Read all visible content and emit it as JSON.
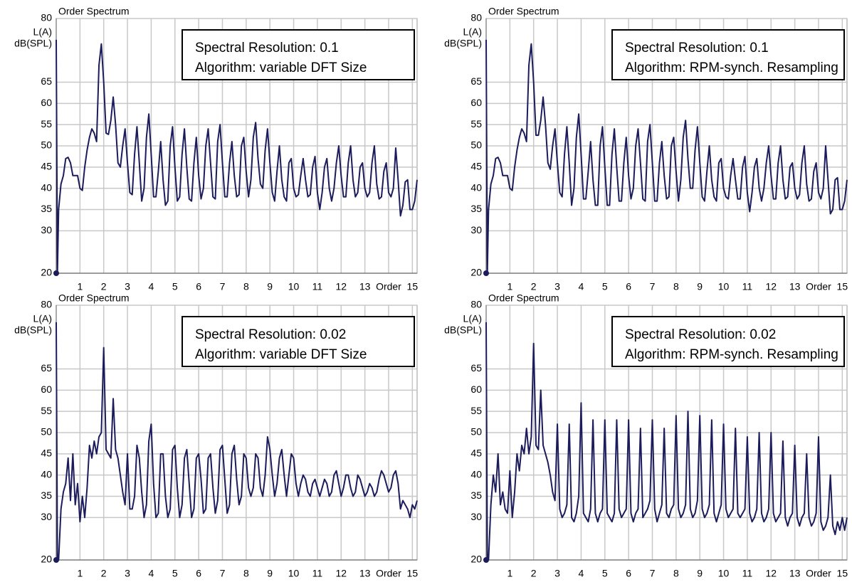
{
  "chart_data": [
    {
      "type": "line",
      "title": "Order Spectrum",
      "y_label": [
        "L(A)",
        "dB(SPL)"
      ],
      "annotation": [
        "Spectral Resolution: 0.1",
        "Algorithm: variable DFT Size"
      ],
      "color": "#1c1c5c",
      "grid": true,
      "xlim": [
        0,
        15.2
      ],
      "ylim": [
        20,
        80
      ],
      "xticks": [
        1,
        2,
        3,
        4,
        5,
        6,
        7,
        8,
        9,
        10,
        11,
        12,
        13,
        {
          "value": 14,
          "label": "Order"
        },
        15
      ],
      "yticks": [
        20,
        30,
        35,
        40,
        45,
        50,
        55,
        60,
        65,
        80
      ],
      "x": [
        0,
        0.05,
        0.1,
        0.2,
        0.3,
        0.4,
        0.5,
        0.6,
        0.7,
        0.8,
        0.9,
        1,
        1.1,
        1.2,
        1.3,
        1.4,
        1.5,
        1.6,
        1.7,
        1.8,
        1.9,
        2,
        2.1,
        2.2,
        2.3,
        2.4,
        2.5,
        2.6,
        2.7,
        2.8,
        2.9,
        3,
        3.1,
        3.2,
        3.3,
        3.4,
        3.5,
        3.6,
        3.7,
        3.8,
        3.9,
        4,
        4.1,
        4.2,
        4.3,
        4.4,
        4.5,
        4.6,
        4.7,
        4.8,
        4.9,
        5,
        5.1,
        5.2,
        5.3,
        5.4,
        5.5,
        5.6,
        5.7,
        5.8,
        5.9,
        6,
        6.1,
        6.2,
        6.3,
        6.4,
        6.5,
        6.6,
        6.7,
        6.8,
        6.9,
        7,
        7.1,
        7.2,
        7.3,
        7.4,
        7.5,
        7.6,
        7.7,
        7.8,
        7.9,
        8,
        8.1,
        8.2,
        8.3,
        8.4,
        8.5,
        8.6,
        8.7,
        8.8,
        8.9,
        9,
        9.1,
        9.2,
        9.3,
        9.4,
        9.5,
        9.6,
        9.7,
        9.8,
        9.9,
        10,
        10.1,
        10.2,
        10.3,
        10.4,
        10.5,
        10.6,
        10.7,
        10.8,
        10.9,
        11,
        11.1,
        11.2,
        11.3,
        11.4,
        11.5,
        11.6,
        11.7,
        11.8,
        11.9,
        12,
        12.1,
        12.2,
        12.3,
        12.4,
        12.5,
        12.6,
        12.7,
        12.8,
        12.9,
        13,
        13.1,
        13.2,
        13.3,
        13.4,
        13.5,
        13.6,
        13.7,
        13.8,
        13.9,
        14,
        14.1,
        14.2,
        14.3,
        14.4,
        14.5,
        14.6,
        14.7,
        14.8,
        14.9,
        15,
        15.1,
        15.2
      ],
      "values": [
        75,
        20,
        35,
        41,
        43,
        47,
        47.3,
        46,
        43,
        43,
        43,
        40,
        39.5,
        45,
        49,
        52,
        54,
        53,
        51,
        69,
        74,
        65,
        53,
        52.7,
        56,
        61.5,
        55,
        46,
        45,
        50,
        54,
        46,
        39,
        38.5,
        48,
        54.5,
        46,
        37,
        40,
        52,
        57.5,
        48,
        38,
        38,
        44,
        51,
        42,
        36,
        37,
        50,
        54.5,
        45,
        37,
        38,
        48,
        54,
        45,
        37.5,
        37,
        46,
        52,
        43,
        37.5,
        40,
        50,
        54,
        46,
        38,
        37.5,
        51,
        55,
        46,
        38,
        38,
        46,
        51,
        43,
        38,
        38.5,
        50,
        52,
        44,
        38,
        42,
        52,
        55.5,
        47,
        41,
        40,
        49,
        54,
        46,
        39,
        37,
        44,
        50,
        42,
        38,
        37,
        46,
        47,
        40,
        38,
        38.5,
        43,
        47,
        42,
        38,
        38.5,
        45,
        47.5,
        39,
        35,
        39,
        45,
        47,
        40,
        37,
        40,
        46,
        50,
        43,
        38,
        38,
        46,
        50,
        42,
        38,
        39,
        45,
        46,
        40,
        38,
        39,
        46,
        50,
        41,
        37.5,
        38,
        44,
        46,
        39,
        38,
        40,
        49.5,
        42,
        33.5,
        36,
        41.5,
        42,
        35,
        35,
        37,
        42
      ]
    },
    {
      "type": "line",
      "title": "Order Spectrum",
      "y_label": [
        "L(A)",
        "dB(SPL)"
      ],
      "annotation": [
        "Spectral Resolution: 0.1",
        "Algorithm: RPM-synch. Resampling"
      ],
      "color": "#1c1c5c",
      "grid": true,
      "xlim": [
        0,
        15.2
      ],
      "ylim": [
        20,
        80
      ],
      "xticks": [
        1,
        2,
        3,
        4,
        5,
        6,
        7,
        8,
        9,
        10,
        11,
        12,
        13,
        {
          "value": 14,
          "label": "Order"
        },
        15
      ],
      "yticks": [
        20,
        30,
        35,
        40,
        45,
        50,
        55,
        60,
        65,
        80
      ],
      "x": [
        0,
        0.05,
        0.1,
        0.2,
        0.3,
        0.4,
        0.5,
        0.6,
        0.7,
        0.8,
        0.9,
        1,
        1.1,
        1.2,
        1.3,
        1.4,
        1.5,
        1.6,
        1.7,
        1.8,
        1.9,
        2,
        2.1,
        2.2,
        2.3,
        2.4,
        2.5,
        2.6,
        2.7,
        2.8,
        2.9,
        3,
        3.1,
        3.2,
        3.3,
        3.4,
        3.5,
        3.6,
        3.7,
        3.8,
        3.9,
        4,
        4.1,
        4.2,
        4.3,
        4.4,
        4.5,
        4.6,
        4.7,
        4.8,
        4.9,
        5,
        5.1,
        5.2,
        5.3,
        5.4,
        5.5,
        5.6,
        5.7,
        5.8,
        5.9,
        6,
        6.1,
        6.2,
        6.3,
        6.4,
        6.5,
        6.6,
        6.7,
        6.8,
        6.9,
        7,
        7.1,
        7.2,
        7.3,
        7.4,
        7.5,
        7.6,
        7.7,
        7.8,
        7.9,
        8,
        8.1,
        8.2,
        8.3,
        8.4,
        8.5,
        8.6,
        8.7,
        8.8,
        8.9,
        9,
        9.1,
        9.2,
        9.3,
        9.4,
        9.5,
        9.6,
        9.7,
        9.8,
        9.9,
        10,
        10.1,
        10.2,
        10.3,
        10.4,
        10.5,
        10.6,
        10.7,
        10.8,
        10.9,
        11,
        11.1,
        11.2,
        11.3,
        11.4,
        11.5,
        11.6,
        11.7,
        11.8,
        11.9,
        12,
        12.1,
        12.2,
        12.3,
        12.4,
        12.5,
        12.6,
        12.7,
        12.8,
        12.9,
        13,
        13.1,
        13.2,
        13.3,
        13.4,
        13.5,
        13.6,
        13.7,
        13.8,
        13.9,
        14,
        14.1,
        14.2,
        14.3,
        14.4,
        14.5,
        14.6,
        14.7,
        14.8,
        14.9,
        15,
        15.1,
        15.2
      ],
      "values": [
        75,
        20,
        35,
        41,
        43,
        47,
        47.3,
        46,
        43,
        43,
        43,
        40,
        39.5,
        45,
        49,
        52,
        54,
        53,
        51,
        69,
        74,
        65,
        52.5,
        52.5,
        56,
        61.5,
        55,
        46,
        44.5,
        50,
        54,
        46,
        39,
        38,
        48,
        54.5,
        46,
        36,
        40,
        52,
        57.5,
        48,
        37.5,
        37.5,
        44,
        51,
        42,
        36,
        36,
        50,
        54.5,
        45,
        36,
        36,
        48,
        54,
        45,
        37,
        37,
        46,
        52,
        43,
        37.5,
        40,
        50,
        54,
        46,
        37.5,
        37,
        51,
        55,
        46,
        37,
        37,
        46,
        51,
        43,
        37.5,
        38,
        50,
        52,
        44,
        37,
        42,
        52,
        56,
        47,
        40,
        40,
        49,
        54.5,
        46,
        38,
        37,
        44,
        50,
        42,
        38,
        37,
        46,
        47,
        40,
        38,
        37.5,
        43,
        47,
        42,
        37.5,
        37.5,
        45,
        47.5,
        39,
        34.5,
        39,
        45,
        47,
        40,
        37,
        40,
        46,
        50,
        43,
        37.5,
        37.5,
        46,
        50,
        42,
        37.5,
        38,
        45,
        46,
        40,
        37.5,
        38.5,
        46,
        50,
        41,
        37,
        37.5,
        44,
        46,
        39,
        37.5,
        40,
        50,
        42,
        34,
        35,
        42,
        42.5,
        35,
        35,
        37,
        42
      ]
    },
    {
      "type": "line",
      "title": "Order Spectrum",
      "y_label": [
        "L(A)",
        "dB(SPL)"
      ],
      "annotation": [
        "Spectral Resolution: 0.02",
        "Algorithm: variable DFT Size"
      ],
      "color": "#1c1c5c",
      "grid": true,
      "xlim": [
        0,
        15.2
      ],
      "ylim": [
        20,
        80
      ],
      "xticks": [
        1,
        2,
        3,
        4,
        5,
        6,
        7,
        8,
        9,
        10,
        11,
        12,
        13,
        {
          "value": 14,
          "label": "Order"
        },
        15
      ],
      "yticks": [
        20,
        30,
        35,
        40,
        45,
        50,
        55,
        60,
        65,
        80
      ],
      "x": [
        0,
        0.05,
        0.1,
        0.2,
        0.3,
        0.4,
        0.5,
        0.6,
        0.7,
        0.8,
        0.9,
        1,
        1.1,
        1.2,
        1.3,
        1.4,
        1.5,
        1.6,
        1.7,
        1.8,
        1.9,
        2,
        2.1,
        2.2,
        2.3,
        2.4,
        2.5,
        2.6,
        2.7,
        2.8,
        2.9,
        3,
        3.1,
        3.2,
        3.3,
        3.4,
        3.5,
        3.6,
        3.7,
        3.8,
        3.9,
        4,
        4.1,
        4.2,
        4.3,
        4.4,
        4.5,
        4.6,
        4.7,
        4.8,
        4.9,
        5,
        5.1,
        5.2,
        5.3,
        5.4,
        5.5,
        5.6,
        5.7,
        5.8,
        5.9,
        6,
        6.1,
        6.2,
        6.3,
        6.4,
        6.5,
        6.6,
        6.7,
        6.8,
        6.9,
        7,
        7.1,
        7.2,
        7.3,
        7.4,
        7.5,
        7.6,
        7.7,
        7.8,
        7.9,
        8,
        8.1,
        8.2,
        8.3,
        8.4,
        8.5,
        8.6,
        8.7,
        8.8,
        8.9,
        9,
        9.1,
        9.2,
        9.3,
        9.4,
        9.5,
        9.6,
        9.7,
        9.8,
        9.9,
        10,
        10.1,
        10.2,
        10.3,
        10.4,
        10.5,
        10.6,
        10.7,
        10.8,
        10.9,
        11,
        11.1,
        11.2,
        11.3,
        11.4,
        11.5,
        11.6,
        11.7,
        11.8,
        11.9,
        12,
        12.1,
        12.2,
        12.3,
        12.4,
        12.5,
        12.6,
        12.7,
        12.8,
        12.9,
        13,
        13.1,
        13.2,
        13.3,
        13.4,
        13.5,
        13.6,
        13.7,
        13.8,
        13.9,
        14,
        14.1,
        14.2,
        14.3,
        14.4,
        14.5,
        14.6,
        14.7,
        14.8,
        14.9,
        15,
        15.1,
        15.2
      ],
      "values": [
        76,
        20,
        20,
        32,
        36,
        38,
        44,
        34,
        45,
        33,
        38,
        29,
        35,
        30,
        37,
        47,
        44,
        48,
        45,
        49,
        50,
        70,
        46,
        45,
        44,
        58,
        46,
        44,
        40,
        36,
        33,
        45,
        32,
        32,
        35,
        47,
        44,
        36,
        30,
        33,
        48,
        52,
        38,
        30,
        31,
        45,
        45,
        35,
        30,
        32,
        46,
        47,
        37,
        30,
        33,
        44,
        46,
        38,
        30,
        32,
        44,
        45,
        39,
        31,
        32,
        44,
        45,
        37,
        31,
        34,
        46,
        47,
        39,
        31,
        33,
        45,
        47,
        39,
        33,
        35,
        45,
        44,
        37,
        35,
        37,
        45,
        44,
        37,
        35,
        40,
        49,
        46,
        40,
        35,
        38,
        44,
        46,
        40,
        35,
        40,
        45,
        44,
        38,
        35,
        38,
        40,
        39,
        36,
        35,
        38,
        39,
        37,
        35,
        37,
        39,
        38,
        35,
        36,
        40,
        41,
        38,
        35,
        37,
        40,
        40,
        37,
        35,
        36,
        40,
        39,
        37,
        35,
        36,
        38,
        37,
        35,
        36,
        39,
        41,
        40,
        38,
        36,
        37,
        40,
        41,
        38,
        32,
        34,
        33,
        32,
        30,
        33,
        32,
        34
      ]
    },
    {
      "type": "line",
      "title": "Order Spectrum",
      "y_label": [
        "L(A)",
        "dB(SPL)"
      ],
      "annotation": [
        "Spectral Resolution: 0.02",
        "Algorithm: RPM-synch. Resampling"
      ],
      "color": "#1c1c5c",
      "grid": true,
      "xlim": [
        0,
        15.2
      ],
      "ylim": [
        20,
        80
      ],
      "xticks": [
        1,
        2,
        3,
        4,
        5,
        6,
        7,
        8,
        9,
        10,
        11,
        12,
        13,
        {
          "value": 14,
          "label": "Order"
        },
        15
      ],
      "yticks": [
        20,
        30,
        35,
        40,
        45,
        50,
        55,
        60,
        65,
        80
      ],
      "x": [
        0,
        0.05,
        0.1,
        0.2,
        0.3,
        0.4,
        0.5,
        0.6,
        0.7,
        0.8,
        0.9,
        1,
        1.1,
        1.2,
        1.3,
        1.4,
        1.5,
        1.6,
        1.7,
        1.8,
        1.9,
        2,
        2.1,
        2.2,
        2.3,
        2.4,
        2.5,
        2.6,
        2.7,
        2.8,
        2.9,
        3,
        3.1,
        3.2,
        3.3,
        3.4,
        3.5,
        3.6,
        3.7,
        3.8,
        3.9,
        4,
        4.1,
        4.2,
        4.3,
        4.4,
        4.5,
        4.6,
        4.7,
        4.8,
        4.9,
        5,
        5.1,
        5.2,
        5.3,
        5.4,
        5.5,
        5.6,
        5.7,
        5.8,
        5.9,
        6,
        6.1,
        6.2,
        6.3,
        6.4,
        6.5,
        6.6,
        6.7,
        6.8,
        6.9,
        7,
        7.1,
        7.2,
        7.3,
        7.4,
        7.5,
        7.6,
        7.7,
        7.8,
        7.9,
        8,
        8.1,
        8.2,
        8.3,
        8.4,
        8.5,
        8.6,
        8.7,
        8.8,
        8.9,
        9,
        9.1,
        9.2,
        9.3,
        9.4,
        9.5,
        9.6,
        9.7,
        9.8,
        9.9,
        10,
        10.1,
        10.2,
        10.3,
        10.4,
        10.5,
        10.6,
        10.7,
        10.8,
        10.9,
        11,
        11.1,
        11.2,
        11.3,
        11.4,
        11.5,
        11.6,
        11.7,
        11.8,
        11.9,
        12,
        12.1,
        12.2,
        12.3,
        12.4,
        12.5,
        12.6,
        12.7,
        12.8,
        12.9,
        13,
        13.1,
        13.2,
        13.3,
        13.4,
        13.5,
        13.6,
        13.7,
        13.8,
        13.9,
        14,
        14.1,
        14.2,
        14.3,
        14.4,
        14.5,
        14.6,
        14.7,
        14.8,
        14.9,
        15,
        15.1,
        15.2
      ],
      "values": [
        76,
        20,
        20,
        33,
        40,
        36,
        45,
        33,
        36,
        32,
        31,
        41,
        30,
        36,
        45,
        41,
        47,
        45,
        51,
        45,
        49,
        71,
        47,
        46,
        60,
        47,
        45,
        43,
        40,
        36,
        34,
        52,
        32,
        30,
        31,
        33,
        52,
        30,
        29,
        31,
        35,
        57,
        31,
        30,
        29,
        32,
        53,
        31,
        29,
        31,
        32,
        53,
        31,
        30,
        29,
        31,
        53,
        32,
        30,
        31,
        32,
        53,
        31,
        29,
        31,
        32,
        51,
        30,
        31,
        32,
        34,
        53,
        32,
        29,
        31,
        33,
        51,
        31,
        30,
        32,
        33,
        54,
        32,
        30,
        31,
        33,
        55,
        32,
        30,
        31,
        34,
        54,
        32,
        30,
        31,
        33,
        53,
        31,
        29,
        31,
        33,
        52,
        32,
        30,
        31,
        32,
        51,
        31,
        30,
        31,
        32,
        49,
        31,
        29,
        30,
        32,
        50,
        31,
        29,
        30,
        32,
        50,
        31,
        29,
        30,
        31,
        48,
        30,
        28,
        30,
        31,
        47,
        30,
        28,
        30,
        31,
        45,
        30,
        28,
        29,
        31,
        49,
        29,
        27,
        28,
        30,
        40,
        28,
        26,
        29,
        27,
        30,
        27,
        30
      ]
    }
  ]
}
